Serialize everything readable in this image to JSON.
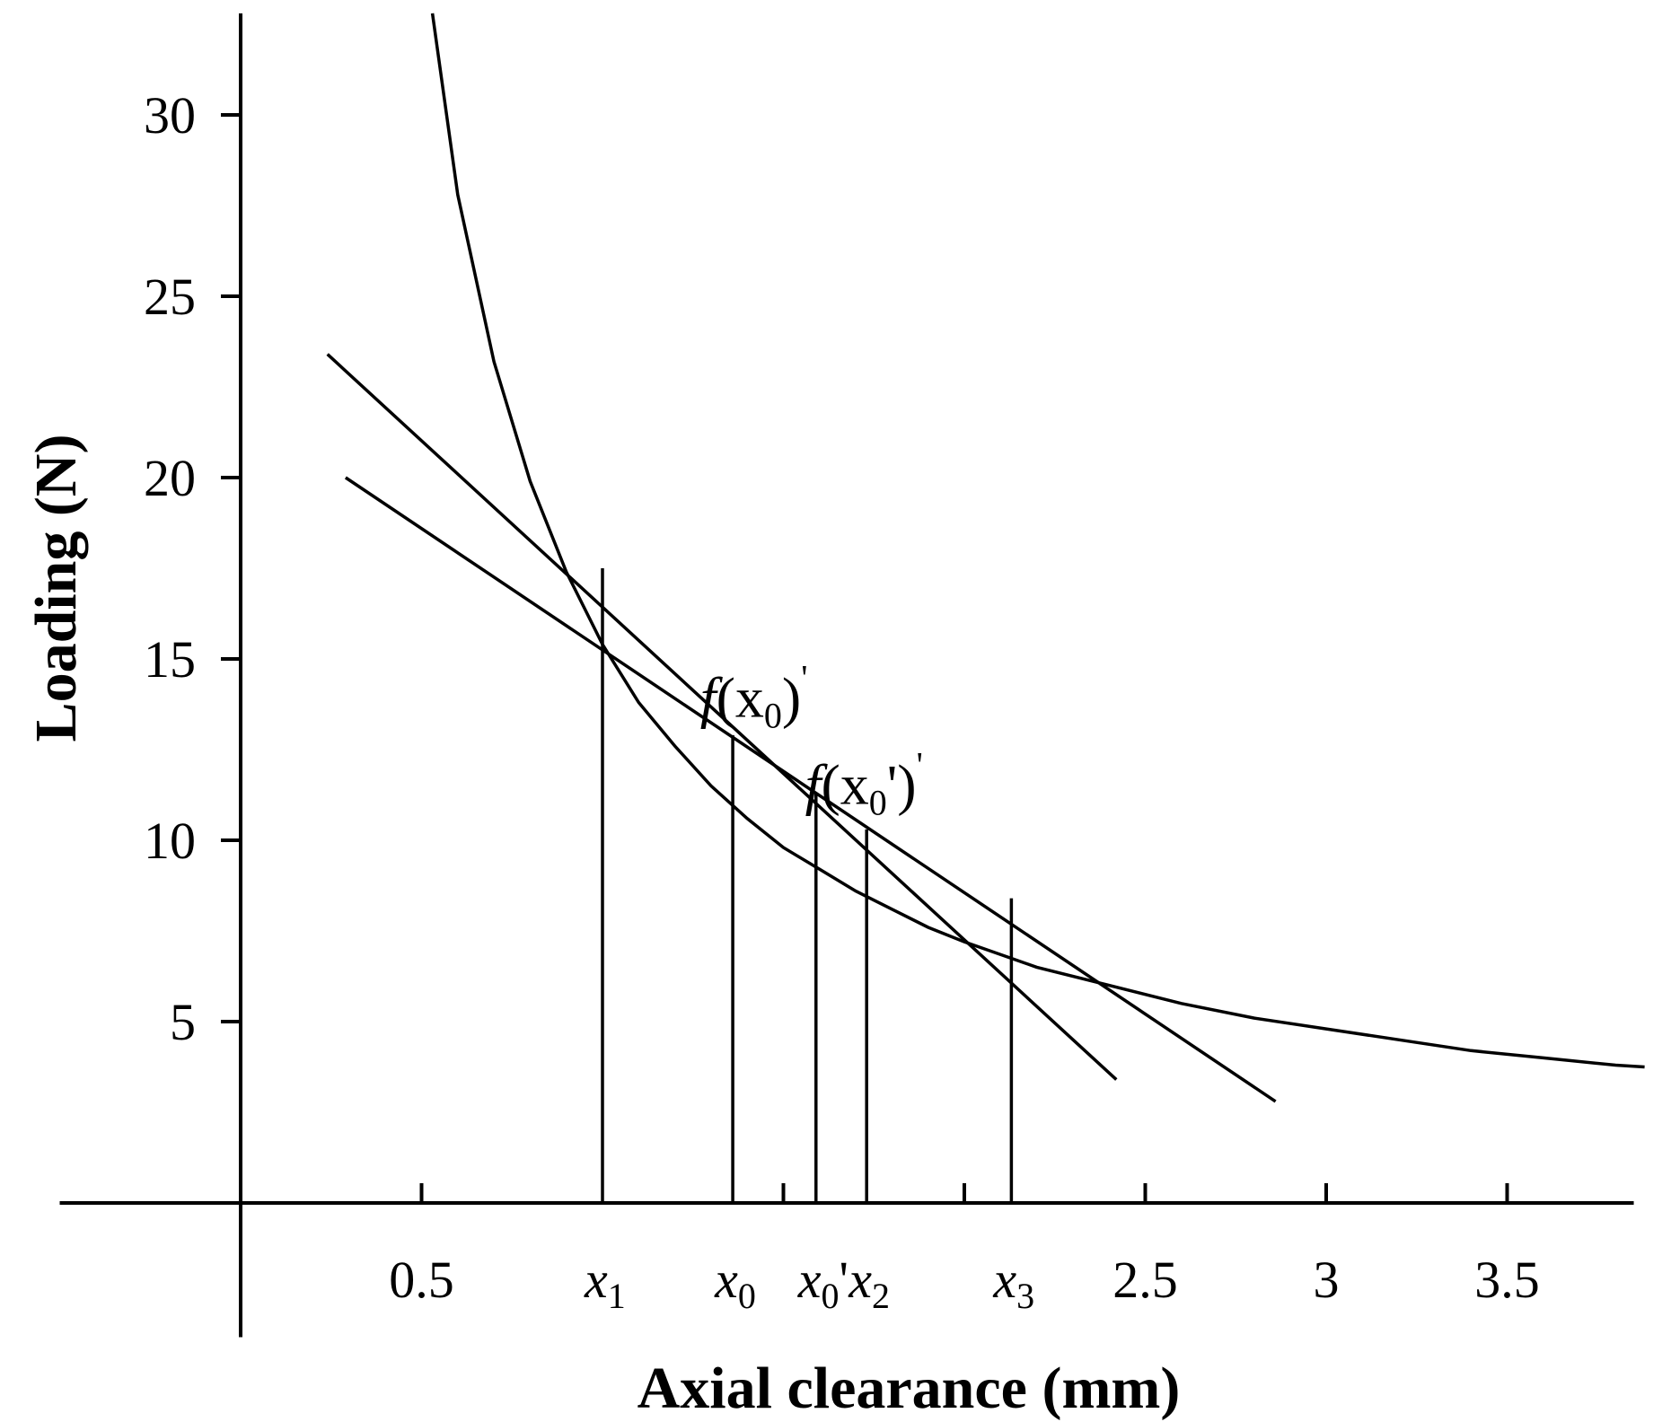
{
  "chart_data": {
    "type": "line",
    "title": "",
    "xlabel": "Axial clearance (mm)",
    "ylabel": "Loading (N)",
    "xlim": [
      -0.5,
      3.85
    ],
    "ylim": [
      -3.7,
      32.8
    ],
    "x_ticks": [
      0.5,
      1.5,
      2,
      2.5,
      3,
      3.5
    ],
    "x_tick_labels": [
      {
        "x": 0.5,
        "text": "0.5"
      },
      {
        "x": 2.5,
        "text": "2.5"
      },
      {
        "x": 3,
        "text": "3"
      },
      {
        "x": 3.5,
        "text": "3.5"
      }
    ],
    "y_ticks": [
      5,
      10,
      15,
      20,
      25,
      30
    ],
    "y_tick_labels": [
      "5",
      "10",
      "15",
      "20",
      "25",
      "30"
    ],
    "grid": false,
    "series": [
      {
        "x": [
          0.53,
          0.6,
          0.7,
          0.8,
          0.9,
          1.0,
          1.1,
          1.2,
          1.3,
          1.4,
          1.5,
          1.6,
          1.7,
          1.8,
          1.9,
          2.0,
          2.2,
          2.4,
          2.6,
          2.8,
          3.0,
          3.2,
          3.4,
          3.6,
          3.8,
          3.88
        ],
        "y": [
          32.8,
          27.8,
          23.2,
          19.9,
          17.4,
          15.4,
          13.8,
          12.6,
          11.5,
          10.6,
          9.8,
          9.2,
          8.6,
          8.1,
          7.6,
          7.2,
          6.5,
          6.0,
          5.5,
          5.1,
          4.8,
          4.5,
          4.2,
          4.0,
          3.8,
          3.75
        ]
      },
      {
        "x": [
          0.24,
          2.42
        ],
        "y": [
          23.4,
          3.4
        ]
      },
      {
        "x": [
          0.29,
          2.86
        ],
        "y": [
          20.0,
          2.8
        ]
      }
    ],
    "vertical_lines": [
      {
        "label": "x",
        "sub": "1",
        "prime": "",
        "x": 1.0,
        "y_top": 17.5
      },
      {
        "label": "x",
        "sub": "0",
        "prime": "",
        "x": 1.36,
        "y_top": 12.9
      },
      {
        "label": "x",
        "sub": "0",
        "prime": "'",
        "x": 1.59,
        "y_top": 11.3
      },
      {
        "label": "x",
        "sub": "2",
        "prime": "",
        "x": 1.73,
        "y_top": 10.3
      },
      {
        "label": "x",
        "sub": "3",
        "prime": "",
        "x": 2.13,
        "y_top": 8.4
      }
    ],
    "annotations": [
      {
        "pre": "f",
        "mid": "(x",
        "sub": "0",
        "post": ")",
        "prime": "'",
        "x": 1.27,
        "y": 13.4
      },
      {
        "pre": "f",
        "mid": "(x",
        "sub": "0",
        "post": "')",
        "prime": "'",
        "x": 1.56,
        "y": 11.0
      }
    ]
  }
}
